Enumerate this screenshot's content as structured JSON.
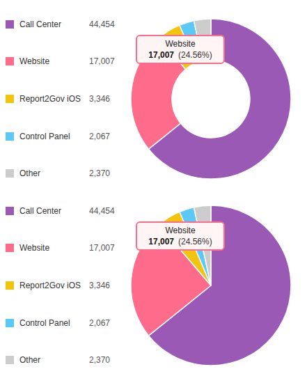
{
  "chart_data": [
    {
      "type": "donut",
      "categories": [
        "Call Center",
        "Website",
        "Report2Gov iOS",
        "Control Panel",
        "Other"
      ],
      "values": [
        44454,
        17007,
        3346,
        2067,
        2370
      ],
      "value_labels": [
        "44,454",
        "17,007",
        "3,346",
        "2,067",
        "2,370"
      ],
      "colors": [
        "#9B59B6",
        "#FF6B8A",
        "#F1C40F",
        "#5BC8F5",
        "#CCCCCC"
      ],
      "annotations": [
        "Website",
        "17,007",
        "(24.56%)"
      ]
    },
    {
      "type": "pie",
      "categories": [
        "Call Center",
        "Website",
        "Report2Gov iOS",
        "Control Panel",
        "Other"
      ],
      "values": [
        44454,
        17007,
        3346,
        2067,
        2370
      ],
      "value_labels": [
        "44,454",
        "17,007",
        "3,346",
        "2,067",
        "2,370"
      ],
      "colors": [
        "#9B59B6",
        "#FF6B8A",
        "#F1C40F",
        "#5BC8F5",
        "#CCCCCC"
      ],
      "annotations": [
        "Website",
        "17,007",
        "(24.56%)"
      ]
    }
  ]
}
